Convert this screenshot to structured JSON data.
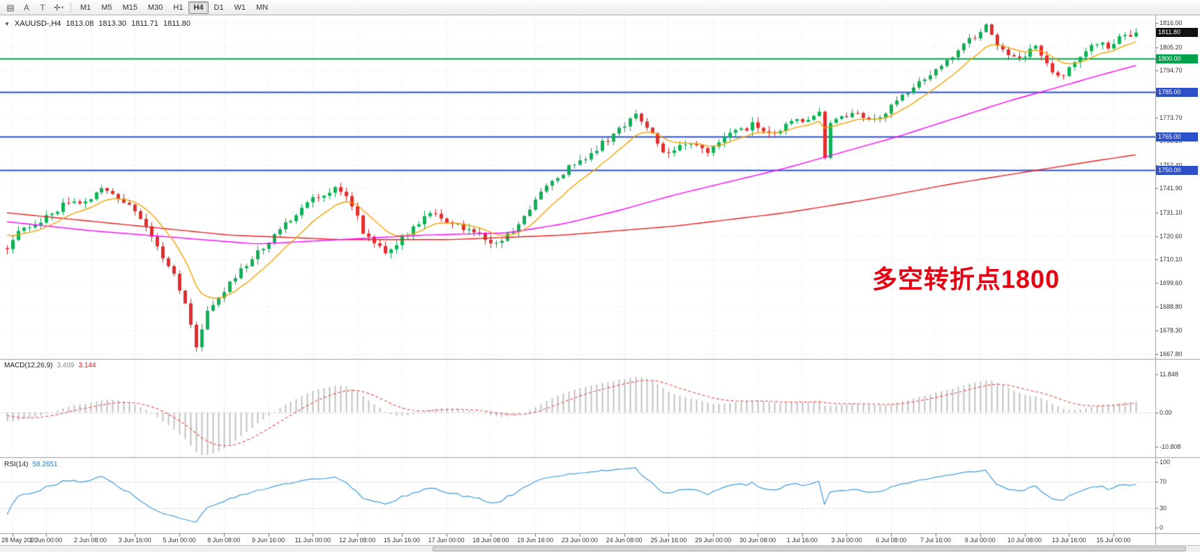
{
  "toolbar": {
    "icons": [
      {
        "id": "charts-list-icon",
        "glyph": "▤"
      },
      {
        "id": "cursor-tool-icon",
        "glyph": "A"
      },
      {
        "id": "text-tool-icon",
        "glyph": "T"
      },
      {
        "id": "crosshair-tool-icon",
        "glyph": "✛"
      },
      {
        "id": "dropdown-arrow-icon",
        "glyph": "▾"
      }
    ],
    "timeframes": [
      "M1",
      "M5",
      "M15",
      "M30",
      "H1",
      "H4",
      "D1",
      "W1",
      "MN"
    ],
    "active_timeframe": "H4"
  },
  "chart_header": {
    "collapse_glyph": "▼",
    "symbol_period": "XAUUSD-,H4",
    "open": "1813.08",
    "high": "1813.30",
    "low": "1811.71",
    "close": "1811.80"
  },
  "annotation": {
    "text": "多空转折点1800",
    "color": "#e60012"
  },
  "colors": {
    "candle_up": "#0fb257",
    "candle_up_border": "#089f49",
    "candle_down": "#e22e2e",
    "candle_down_border": "#c51f1f",
    "ma_fast_orange": "#f5a300",
    "ma_mid_magenta": "#ff00ff",
    "ma_slow_red": "#ee1c1c",
    "hline_green": "#00a14b",
    "hline_blue": "#2d50c8",
    "price_badge_bg": "#111111",
    "macd_hist": "#c0c0c0",
    "macd_signal": "#f25050",
    "rsi_line": "#3e9bde",
    "grid": "#e7e7e7",
    "panel_border": "#9c9c9c"
  },
  "chart_data": {
    "type": "candlestick",
    "symbol": "XAUUSD-",
    "period": "H4",
    "candles_n": 204,
    "ylim": [
      1665.5,
      1819.5
    ],
    "current_price": {
      "label": "1811.80",
      "price": 1811.8
    },
    "price_anchors": [
      [
        0,
        1716
      ],
      [
        3,
        1724
      ],
      [
        6,
        1727
      ],
      [
        10,
        1734
      ],
      [
        14,
        1737
      ],
      [
        18,
        1742
      ],
      [
        21,
        1737
      ],
      [
        24,
        1729
      ],
      [
        28,
        1712
      ],
      [
        30,
        1703
      ],
      [
        32,
        1690
      ],
      [
        34,
        1671
      ],
      [
        36,
        1688
      ],
      [
        40,
        1700
      ],
      [
        44,
        1710
      ],
      [
        48,
        1722
      ],
      [
        52,
        1730
      ],
      [
        56,
        1739
      ],
      [
        60,
        1742
      ],
      [
        62,
        1735
      ],
      [
        64,
        1722
      ],
      [
        68,
        1713
      ],
      [
        72,
        1722
      ],
      [
        76,
        1731
      ],
      [
        80,
        1726
      ],
      [
        84,
        1722
      ],
      [
        88,
        1717
      ],
      [
        92,
        1726
      ],
      [
        95,
        1736
      ],
      [
        98,
        1746
      ],
      [
        102,
        1753
      ],
      [
        106,
        1760
      ],
      [
        110,
        1768
      ],
      [
        113,
        1776
      ],
      [
        116,
        1767
      ],
      [
        118,
        1757
      ],
      [
        122,
        1762
      ],
      [
        126,
        1759
      ],
      [
        130,
        1766
      ],
      [
        134,
        1770
      ],
      [
        138,
        1768
      ],
      [
        142,
        1772
      ],
      [
        146,
        1776
      ],
      [
        147,
        1757
      ],
      [
        148,
        1771
      ],
      [
        152,
        1776
      ],
      [
        156,
        1773
      ],
      [
        160,
        1781
      ],
      [
        164,
        1790
      ],
      [
        168,
        1796
      ],
      [
        172,
        1806
      ],
      [
        176,
        1815
      ],
      [
        178,
        1807
      ],
      [
        182,
        1799
      ],
      [
        184,
        1806
      ],
      [
        186,
        1803
      ],
      [
        189,
        1791
      ],
      [
        192,
        1798
      ],
      [
        195,
        1805
      ],
      [
        198,
        1806
      ],
      [
        200,
        1809
      ],
      [
        203,
        1811.8
      ]
    ],
    "warmup_anchors": [
      [
        -40,
        1717
      ],
      [
        -30,
        1726
      ],
      [
        -20,
        1736
      ],
      [
        -10,
        1729
      ],
      [
        -1,
        1717
      ]
    ],
    "ma_mid_anchors": [
      [
        0,
        1727
      ],
      [
        15,
        1723
      ],
      [
        30,
        1720
      ],
      [
        45,
        1717
      ],
      [
        60,
        1719
      ],
      [
        75,
        1721
      ],
      [
        90,
        1722
      ],
      [
        100,
        1726
      ],
      [
        110,
        1732
      ],
      [
        120,
        1739
      ],
      [
        130,
        1745
      ],
      [
        140,
        1751
      ],
      [
        150,
        1758
      ],
      [
        160,
        1765
      ],
      [
        170,
        1773
      ],
      [
        180,
        1781
      ],
      [
        190,
        1788
      ],
      [
        197,
        1793
      ],
      [
        203,
        1797
      ]
    ],
    "ma_slow_anchors": [
      [
        0,
        1731
      ],
      [
        20,
        1726
      ],
      [
        40,
        1721
      ],
      [
        60,
        1719
      ],
      [
        80,
        1719
      ],
      [
        100,
        1721
      ],
      [
        120,
        1725
      ],
      [
        140,
        1731
      ],
      [
        155,
        1737
      ],
      [
        170,
        1744
      ],
      [
        185,
        1750
      ],
      [
        195,
        1754
      ],
      [
        203,
        1757
      ]
    ],
    "hlines": [
      {
        "price": 1800,
        "label": "1800.00",
        "type": "green"
      },
      {
        "price": 1785,
        "label": "1785.00",
        "type": "blue"
      },
      {
        "price": 1765,
        "label": "1765.00",
        "type": "blue"
      },
      {
        "price": 1750,
        "label": "1750.00",
        "type": "blue"
      }
    ],
    "y_ticks": [
      "1816.00",
      "1805.20",
      "1794.70",
      "1784.20",
      "1773.70",
      "1763.20",
      "1752.40",
      "1741.90",
      "1731.10",
      "1720.60",
      "1710.10",
      "1699.60",
      "1688.80",
      "1678.30",
      "1667.80"
    ],
    "time_labels": [
      {
        "idx": 1,
        "label": "28 May 2020"
      },
      {
        "idx": 7,
        "label": "1 Jun 00:00"
      },
      {
        "idx": 15,
        "label": "2 Jun 08:00"
      },
      {
        "idx": 23,
        "label": "3 Jun 16:00"
      },
      {
        "idx": 31,
        "label": "5 Jun 00:00"
      },
      {
        "idx": 39,
        "label": "8 Jun 08:00"
      },
      {
        "idx": 47,
        "label": "9 Jun 16:00"
      },
      {
        "idx": 55,
        "label": "11 Jun 00:00"
      },
      {
        "idx": 63,
        "label": "12 Jun 08:00"
      },
      {
        "idx": 71,
        "label": "15 Jun 16:00"
      },
      {
        "idx": 79,
        "label": "17 Jun 00:00"
      },
      {
        "idx": 87,
        "label": "18 Jun 08:00"
      },
      {
        "idx": 95,
        "label": "19 Jun 16:00"
      },
      {
        "idx": 103,
        "label": "23 Jun 00:00"
      },
      {
        "idx": 111,
        "label": "24 Jun 08:00"
      },
      {
        "idx": 119,
        "label": "25 Jun 16:00"
      },
      {
        "idx": 127,
        "label": "29 Jun 00:00"
      },
      {
        "idx": 135,
        "label": "30 Jun 08:00"
      },
      {
        "idx": 143,
        "label": "1 Jul 16:00"
      },
      {
        "idx": 151,
        "label": "3 Jul 00:00"
      },
      {
        "idx": 159,
        "label": "6 Jul 08:00"
      },
      {
        "idx": 167,
        "label": "7 Jul 16:00"
      },
      {
        "idx": 175,
        "label": "9 Jul 00:00"
      },
      {
        "idx": 183,
        "label": "10 Jul 08:00"
      },
      {
        "idx": 191,
        "label": "13 Jul 16:00"
      },
      {
        "idx": 199,
        "label": "15 Jul 00:00"
      }
    ]
  },
  "macd_panel": {
    "title": "MACD(12,26,9)",
    "value_main": "3.409",
    "value_signal": "3.144",
    "axis": [
      {
        "label": "11.848",
        "v": 11.848
      },
      {
        "label": "0.00",
        "v": 0
      },
      {
        "label": "-10.808",
        "v": -10.808
      }
    ],
    "ylim": [
      -14,
      16.5
    ]
  },
  "rsi_panel": {
    "title": "RSI(14)",
    "value": "58.2651",
    "axis": [
      {
        "label": "100",
        "v": 100
      },
      {
        "label": "70",
        "v": 70
      },
      {
        "label": "30",
        "v": 30
      },
      {
        "label": "0",
        "v": 0
      }
    ],
    "levels": [
      70,
      30
    ],
    "ylim": [
      0,
      100
    ]
  }
}
